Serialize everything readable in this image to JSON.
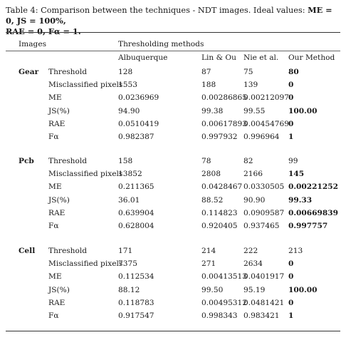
{
  "caption": {
    "prefix": "Table 4:",
    "text": "Comparison between the techniques - NDT images.",
    "ideal_label": "Ideal values:",
    "ideal_1": "ME = 0, JS = 100%,",
    "ideal_2": "RAE = 0, Fα = 1."
  },
  "header": {
    "images": "Images",
    "group": "Thresholding methods",
    "methods": [
      "Albuquerque",
      "Lin & Ou",
      "Nie et al.",
      "Our Method"
    ]
  },
  "groups": [
    {
      "name": "Gear",
      "rows": [
        {
          "label": "Threshold",
          "values": [
            "128",
            "87",
            "75",
            "80"
          ],
          "best": true
        },
        {
          "label": "Misclassified pixels",
          "values": [
            "1553",
            "188",
            "139",
            "0"
          ],
          "best": true
        },
        {
          "label": "ME",
          "values": [
            "0.0236969",
            "0.00286865",
            "0.00212097",
            "0"
          ],
          "best": true
        },
        {
          "label": "JS(%)",
          "values": [
            "94.90",
            "99.38",
            "99.55",
            "100.00"
          ],
          "best": true
        },
        {
          "label": "RAE",
          "values": [
            "0.0510419",
            "0.00617893",
            "0.00454769",
            "0"
          ],
          "best": true
        },
        {
          "label": "Fα",
          "values": [
            "0.982387",
            "0.997932",
            "0.996964",
            "1"
          ],
          "best": true
        }
      ]
    },
    {
      "name": "Pcb",
      "rows": [
        {
          "label": "Threshold",
          "values": [
            "158",
            "78",
            "82",
            "99"
          ],
          "best": false
        },
        {
          "label": "Misclassified pixels",
          "values": [
            "13852",
            "2808",
            "2166",
            "145"
          ],
          "best": true
        },
        {
          "label": "ME",
          "values": [
            "0.211365",
            "0.0428467",
            "0.0330505",
            "0.00221252"
          ],
          "best": true
        },
        {
          "label": "JS(%)",
          "values": [
            "36.01",
            "88.52",
            "90.90",
            "99.33"
          ],
          "best": true
        },
        {
          "label": "RAE",
          "values": [
            "0.639904",
            "0.114823",
            "0.0909587",
            "0.00669839"
          ],
          "best": true
        },
        {
          "label": "Fα",
          "values": [
            "0.628004",
            "0.920405",
            "0.937465",
            "0.997757"
          ],
          "best": true
        }
      ]
    },
    {
      "name": "Cell",
      "rows": [
        {
          "label": "Threshold",
          "values": [
            "171",
            "214",
            "222",
            "213"
          ],
          "best": false
        },
        {
          "label": "Misclassified pixels",
          "values": [
            "7375",
            "271",
            "2634",
            "0"
          ],
          "best": true
        },
        {
          "label": "ME",
          "values": [
            "0.112534",
            "0.00413513",
            "0.0401917",
            "0"
          ],
          "best": true
        },
        {
          "label": "JS(%)",
          "values": [
            "88.12",
            "99.50",
            "95.19",
            "100.00"
          ],
          "best": true
        },
        {
          "label": "RAE",
          "values": [
            "0.118783",
            "0.00495312",
            "0.0481421",
            "0"
          ],
          "best": true
        },
        {
          "label": "Fα",
          "values": [
            "0.917547",
            "0.998343",
            "0.983421",
            "1"
          ],
          "best": true
        }
      ]
    }
  ]
}
